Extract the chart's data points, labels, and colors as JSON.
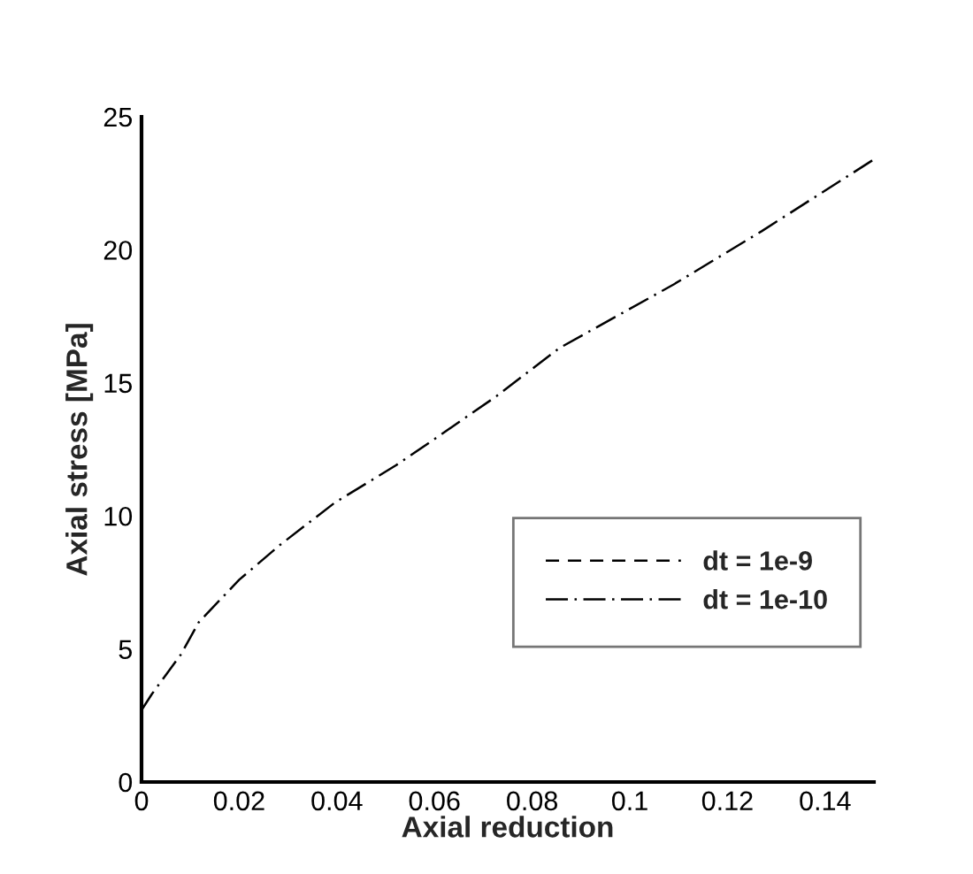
{
  "chart_data": {
    "type": "line",
    "xlabel": "Axial reduction",
    "ylabel": "Axial stress [MPa]",
    "xlim": [
      0,
      0.15
    ],
    "ylim": [
      0,
      25
    ],
    "xticks": [
      0,
      0.02,
      0.04,
      0.06,
      0.08,
      0.1,
      0.12,
      0.14
    ],
    "yticks": [
      0,
      5,
      10,
      15,
      20,
      25
    ],
    "x": [
      0,
      0.0021,
      0.0081,
      0.0117,
      0.02,
      0.0283,
      0.0396,
      0.0521,
      0.0593,
      0.0727,
      0.0855,
      0.109,
      0.127,
      0.15
    ],
    "series": [
      {
        "name": "dt = 1e-9",
        "color": "#000000",
        "line_style": "dashed",
        "values": [
          null,
          null,
          null,
          null,
          null,
          null,
          null,
          null,
          null,
          null,
          null,
          null,
          null,
          null
        ]
      },
      {
        "name": "dt = 1e-10",
        "color": "#000000",
        "line_style": "dashdot",
        "values": [
          2.7,
          3.3,
          4.8,
          6.0,
          7.6,
          8.9,
          10.5,
          11.9,
          12.8,
          14.5,
          16.3,
          18.7,
          20.7,
          23.4
        ]
      }
    ],
    "grid": false,
    "legend": "right"
  }
}
